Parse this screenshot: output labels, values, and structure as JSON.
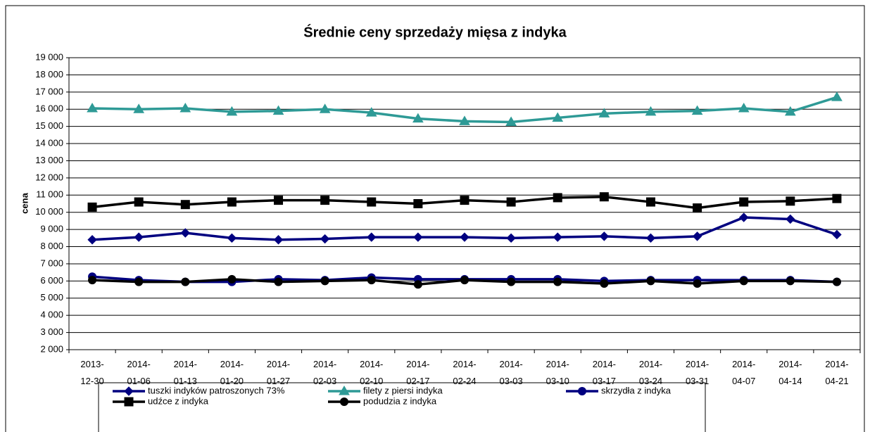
{
  "chart_data": {
    "type": "line",
    "title": "Średnie ceny sprzedaży mięsa z indyka",
    "y_label": "cena",
    "categories": [
      "2013-12-30",
      "2014-01-06",
      "2014-01-13",
      "2014-01-20",
      "2014-01-27",
      "2014-02-03",
      "2014-02-10",
      "2014-02-17",
      "2014-02-24",
      "2014-03-03",
      "2014-03-10",
      "2014-03-17",
      "2014-03-24",
      "2014-03-31",
      "2014-04-07",
      "2014-04-14",
      "2014-04-21"
    ],
    "ylim": [
      2000,
      19000
    ],
    "yticks": [
      {
        "value": 2000,
        "label": "2 000"
      },
      {
        "value": 3000,
        "label": "3 000"
      },
      {
        "value": 4000,
        "label": "4 000"
      },
      {
        "value": 5000,
        "label": "5 000"
      },
      {
        "value": 6000,
        "label": "6 000"
      },
      {
        "value": 7000,
        "label": "7 000"
      },
      {
        "value": 8000,
        "label": "8 000"
      },
      {
        "value": 9000,
        "label": "9 000"
      },
      {
        "value": 10000,
        "label": "10 000"
      },
      {
        "value": 11000,
        "label": "11 000"
      },
      {
        "value": 12000,
        "label": "12 000"
      },
      {
        "value": 13000,
        "label": "13 000"
      },
      {
        "value": 14000,
        "label": "14 000"
      },
      {
        "value": 15000,
        "label": "15 000"
      },
      {
        "value": 16000,
        "label": "16 000"
      },
      {
        "value": 17000,
        "label": "17 000"
      },
      {
        "value": 18000,
        "label": "18 000"
      },
      {
        "value": 19000,
        "label": "19 000"
      }
    ],
    "grid": true,
    "legend": "bottom",
    "series": [
      {
        "name": "tuszki indyków  patroszonych 73%",
        "color": "#000080",
        "marker": "diamond",
        "values": [
          8400,
          8550,
          8800,
          8500,
          8400,
          8450,
          8550,
          8550,
          8550,
          8500,
          8550,
          8600,
          8500,
          8600,
          9700,
          9600,
          8700
        ]
      },
      {
        "name": "filety z piersi indyka",
        "color": "#2e9a96",
        "marker": "triangle",
        "values": [
          16050,
          16000,
          16050,
          15850,
          15900,
          16000,
          15800,
          15450,
          15300,
          15250,
          15500,
          15750,
          15850,
          15900,
          16050,
          15850,
          16700
        ]
      },
      {
        "name": "skrzydła z indyka",
        "color": "#000080",
        "marker": "circle",
        "values": [
          6250,
          6050,
          5950,
          5950,
          6100,
          6050,
          6200,
          6100,
          6100,
          6100,
          6100,
          6000,
          6050,
          6050,
          6050,
          6050,
          5950
        ]
      },
      {
        "name": "udźce z indyka",
        "color": "#000000",
        "marker": "square",
        "values": [
          10300,
          10600,
          10450,
          10600,
          10700,
          10700,
          10600,
          10500,
          10700,
          10600,
          10850,
          10900,
          10600,
          10250,
          10600,
          10650,
          10800
        ]
      },
      {
        "name": "podudzia z indyka",
        "color": "#000000",
        "marker": "circle",
        "values": [
          6050,
          5950,
          5950,
          6100,
          5950,
          6000,
          6050,
          5800,
          6050,
          5950,
          5950,
          5850,
          6000,
          5850,
          6000,
          6000,
          5950
        ]
      }
    ]
  }
}
